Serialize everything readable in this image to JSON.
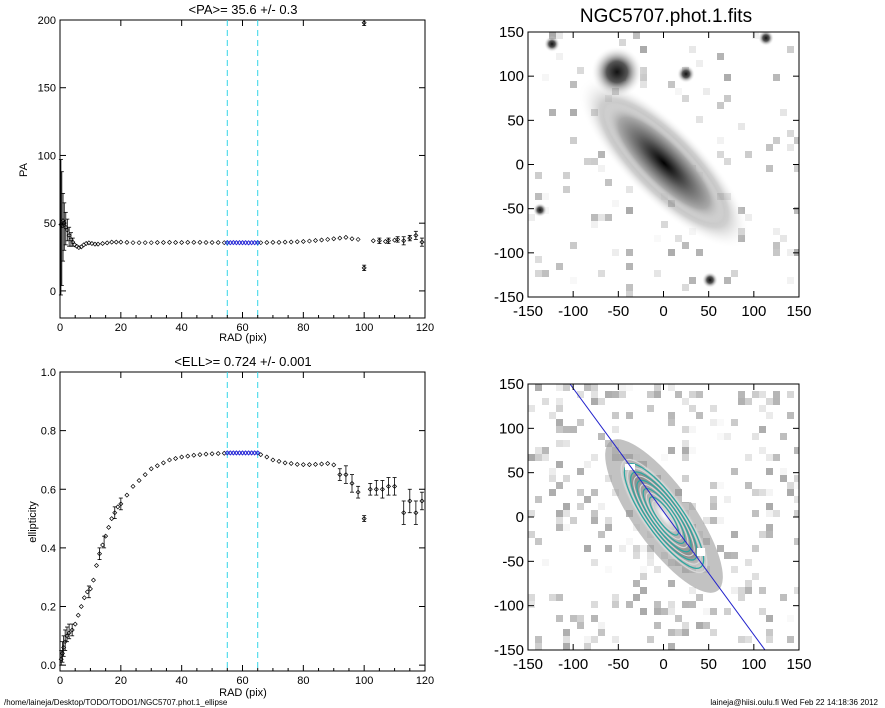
{
  "footer": {
    "path": "/home/laineja/Desktop/TODO/TODO1/NGC5707.phot.1_ellipse",
    "stamp": "laineja@hiisi.oulu.fi  Wed Feb 22 14:18:36 2012"
  },
  "colors": {
    "marker": "#000000",
    "fit_range": "#2b2bd6",
    "dashed": "#34d6e8",
    "pa_line": "#2222cc"
  },
  "chart_data": [
    {
      "type": "scatter",
      "title": "<PA>=  35.6 +/-   0.3",
      "xlabel": "RAD (pix)",
      "ylabel": "PA",
      "xlim": [
        0,
        120
      ],
      "ylim": [
        -20,
        200
      ],
      "xticks": [
        "0",
        "20",
        "40",
        "60",
        "80",
        "100",
        "120"
      ],
      "yticks": [
        "0",
        "50",
        "100",
        "150",
        "200"
      ],
      "vlines": [
        55,
        65
      ],
      "error_bars": [
        {
          "x": 0.3,
          "y": 49,
          "lo": -3,
          "hi": 97
        },
        {
          "x": 0.6,
          "y": 48,
          "lo": 4,
          "hi": 88
        },
        {
          "x": 1.0,
          "y": 52,
          "lo": 22,
          "hi": 72
        },
        {
          "x": 1.4,
          "y": 50,
          "lo": 30,
          "hi": 65
        },
        {
          "x": 1.9,
          "y": 47,
          "lo": 34,
          "hi": 58
        },
        {
          "x": 2.4,
          "y": 45,
          "lo": 37,
          "hi": 53
        },
        {
          "x": 3.0,
          "y": 41,
          "lo": 33,
          "hi": 47
        },
        {
          "x": 3.6,
          "y": 38,
          "lo": 33,
          "hi": 43
        },
        {
          "x": 4.2,
          "y": 36,
          "lo": 33,
          "hi": 39
        },
        {
          "x": 100,
          "y": 17,
          "lo": 15,
          "hi": 19
        },
        {
          "x": 100,
          "y": 198,
          "lo": 196,
          "hi": 200
        },
        {
          "x": 105,
          "y": 37,
          "lo": 35,
          "hi": 39
        },
        {
          "x": 108,
          "y": 37,
          "lo": 35,
          "hi": 39
        },
        {
          "x": 111,
          "y": 38,
          "lo": 36,
          "hi": 40
        },
        {
          "x": 113,
          "y": 37,
          "lo": 34,
          "hi": 40
        },
        {
          "x": 115,
          "y": 39,
          "lo": 37,
          "hi": 41
        },
        {
          "x": 117,
          "y": 41,
          "lo": 38,
          "hi": 44
        },
        {
          "x": 119,
          "y": 36,
          "lo": 33,
          "hi": 39
        }
      ],
      "points": [
        [
          0.3,
          49
        ],
        [
          0.6,
          48
        ],
        [
          1.0,
          52
        ],
        [
          1.4,
          50
        ],
        [
          1.9,
          47
        ],
        [
          2.4,
          45
        ],
        [
          3.0,
          41
        ],
        [
          3.6,
          38
        ],
        [
          4.2,
          36
        ],
        [
          4.8,
          34
        ],
        [
          5.5,
          33
        ],
        [
          6.2,
          32
        ],
        [
          7.0,
          32.5
        ],
        [
          7.8,
          34
        ],
        [
          8.6,
          35
        ],
        [
          9.5,
          35.5
        ],
        [
          10.5,
          35
        ],
        [
          11.5,
          34.5
        ],
        [
          12.5,
          34.5
        ],
        [
          14,
          35
        ],
        [
          15.5,
          35.5
        ],
        [
          17,
          36
        ],
        [
          18.5,
          36
        ],
        [
          20,
          36
        ],
        [
          22,
          35.8
        ],
        [
          24,
          35.6
        ],
        [
          26,
          35.6
        ],
        [
          28,
          35.6
        ],
        [
          30,
          35.6
        ],
        [
          32,
          35.7
        ],
        [
          34,
          35.7
        ],
        [
          36,
          35.8
        ],
        [
          38,
          35.7
        ],
        [
          40,
          35.7
        ],
        [
          42,
          35.8
        ],
        [
          44,
          35.8
        ],
        [
          46,
          35.8
        ],
        [
          48,
          35.7
        ],
        [
          50,
          35.7
        ],
        [
          52,
          35.7
        ],
        [
          54,
          35.6
        ],
        [
          66,
          35.6
        ],
        [
          68,
          35.7
        ],
        [
          70,
          35.8
        ],
        [
          72,
          35.8
        ],
        [
          74,
          36
        ],
        [
          76,
          36.1
        ],
        [
          78,
          36.3
        ],
        [
          80,
          36.5
        ],
        [
          82,
          36.8
        ],
        [
          84,
          37.2
        ],
        [
          86,
          37.6
        ],
        [
          88,
          38
        ],
        [
          90,
          38.5
        ],
        [
          92,
          39
        ],
        [
          94,
          39.5
        ],
        [
          96,
          38.5
        ],
        [
          98,
          38
        ],
        [
          100,
          17
        ],
        [
          100,
          198
        ],
        [
          103,
          37
        ],
        [
          105,
          37
        ],
        [
          107,
          36.5
        ],
        [
          108,
          37
        ],
        [
          110,
          37.5
        ],
        [
          111,
          38
        ],
        [
          113,
          37
        ],
        [
          115,
          39
        ],
        [
          117,
          41
        ],
        [
          119,
          36
        ]
      ],
      "fit_points": [
        [
          55,
          35.6
        ],
        [
          56,
          35.6
        ],
        [
          57,
          35.7
        ],
        [
          58,
          35.6
        ],
        [
          59,
          35.6
        ],
        [
          60,
          35.6
        ],
        [
          61,
          35.6
        ],
        [
          62,
          35.5
        ],
        [
          63,
          35.6
        ],
        [
          64,
          35.6
        ],
        [
          65,
          35.6
        ]
      ]
    },
    {
      "type": "image",
      "title": "NGC5707.phot.1.fits",
      "xlim": [
        -150,
        150
      ],
      "ylim": [
        -150,
        150
      ],
      "xticks": [
        "-150",
        "-100",
        "-50",
        "0",
        "50",
        "100",
        "150"
      ],
      "yticks": [
        "-150",
        "-100",
        "-50",
        "0",
        "50",
        "100",
        "150"
      ]
    },
    {
      "type": "scatter",
      "title": "<ELL>= 0.724 +/-  0.001",
      "xlabel": "RAD (pix)",
      "ylabel": "ellipticity",
      "xlim": [
        0,
        120
      ],
      "ylim": [
        -0.02,
        1.0
      ],
      "xticks": [
        "0",
        "20",
        "40",
        "60",
        "80",
        "100",
        "120"
      ],
      "yticks": [
        "0.0",
        "0.2",
        "0.4",
        "0.6",
        "0.8",
        "1.0"
      ],
      "vlines": [
        55,
        65
      ],
      "error_bars": [
        {
          "x": 0.4,
          "y": 0.02,
          "lo": 0.0,
          "hi": 0.05
        },
        {
          "x": 0.8,
          "y": 0.04,
          "lo": 0.01,
          "hi": 0.08
        },
        {
          "x": 1.2,
          "y": 0.06,
          "lo": 0.03,
          "hi": 0.1
        },
        {
          "x": 1.7,
          "y": 0.08,
          "lo": 0.05,
          "hi": 0.12
        },
        {
          "x": 2.3,
          "y": 0.1,
          "lo": 0.08,
          "hi": 0.13
        },
        {
          "x": 3.0,
          "y": 0.11,
          "lo": 0.09,
          "hi": 0.14
        },
        {
          "x": 4.0,
          "y": 0.12,
          "lo": 0.1,
          "hi": 0.14
        },
        {
          "x": 9.5,
          "y": 0.25,
          "lo": 0.23,
          "hi": 0.27
        },
        {
          "x": 13,
          "y": 0.38,
          "lo": 0.36,
          "hi": 0.4
        },
        {
          "x": 14.5,
          "y": 0.42,
          "lo": 0.4,
          "hi": 0.44
        },
        {
          "x": 18,
          "y": 0.52,
          "lo": 0.5,
          "hi": 0.54
        },
        {
          "x": 20,
          "y": 0.55,
          "lo": 0.53,
          "hi": 0.57
        },
        {
          "x": 92,
          "y": 0.65,
          "lo": 0.63,
          "hi": 0.67
        },
        {
          "x": 94,
          "y": 0.65,
          "lo": 0.62,
          "hi": 0.68
        },
        {
          "x": 96,
          "y": 0.62,
          "lo": 0.59,
          "hi": 0.65
        },
        {
          "x": 98,
          "y": 0.59,
          "lo": 0.57,
          "hi": 0.61
        },
        {
          "x": 100,
          "y": 0.5,
          "lo": 0.49,
          "hi": 0.51
        },
        {
          "x": 102,
          "y": 0.6,
          "lo": 0.58,
          "hi": 0.62
        },
        {
          "x": 104,
          "y": 0.6,
          "lo": 0.58,
          "hi": 0.63
        },
        {
          "x": 106,
          "y": 0.6,
          "lo": 0.57,
          "hi": 0.63
        },
        {
          "x": 108,
          "y": 0.61,
          "lo": 0.58,
          "hi": 0.64
        },
        {
          "x": 110,
          "y": 0.61,
          "lo": 0.58,
          "hi": 0.64
        },
        {
          "x": 113,
          "y": 0.52,
          "lo": 0.48,
          "hi": 0.56
        },
        {
          "x": 115,
          "y": 0.56,
          "lo": 0.52,
          "hi": 0.6
        },
        {
          "x": 117,
          "y": 0.52,
          "lo": 0.48,
          "hi": 0.56
        },
        {
          "x": 119,
          "y": 0.56,
          "lo": 0.53,
          "hi": 0.59
        }
      ],
      "points": [
        [
          0.4,
          0.02
        ],
        [
          0.8,
          0.04
        ],
        [
          1.2,
          0.06
        ],
        [
          1.7,
          0.08
        ],
        [
          2.3,
          0.1
        ],
        [
          3.0,
          0.11
        ],
        [
          4.0,
          0.12
        ],
        [
          5.0,
          0.14
        ],
        [
          6.0,
          0.17
        ],
        [
          7.0,
          0.2
        ],
        [
          8.0,
          0.23
        ],
        [
          9.0,
          0.25
        ],
        [
          10,
          0.26
        ],
        [
          11,
          0.29
        ],
        [
          12,
          0.34
        ],
        [
          13,
          0.38
        ],
        [
          14,
          0.41
        ],
        [
          15,
          0.44
        ],
        [
          16,
          0.47
        ],
        [
          17,
          0.5
        ],
        [
          18,
          0.52
        ],
        [
          19,
          0.54
        ],
        [
          20,
          0.55
        ],
        [
          22,
          0.58
        ],
        [
          24,
          0.61
        ],
        [
          26,
          0.63
        ],
        [
          28,
          0.65
        ],
        [
          30,
          0.67
        ],
        [
          32,
          0.68
        ],
        [
          34,
          0.69
        ],
        [
          36,
          0.7
        ],
        [
          38,
          0.705
        ],
        [
          40,
          0.71
        ],
        [
          42,
          0.713
        ],
        [
          44,
          0.716
        ],
        [
          46,
          0.718
        ],
        [
          48,
          0.72
        ],
        [
          50,
          0.721
        ],
        [
          52,
          0.722
        ],
        [
          54,
          0.723
        ],
        [
          66,
          0.718
        ],
        [
          68,
          0.71
        ],
        [
          70,
          0.7
        ],
        [
          72,
          0.695
        ],
        [
          74,
          0.69
        ],
        [
          76,
          0.688
        ],
        [
          78,
          0.685
        ],
        [
          80,
          0.684
        ],
        [
          82,
          0.684
        ],
        [
          84,
          0.685
        ],
        [
          86,
          0.686
        ],
        [
          88,
          0.688
        ],
        [
          90,
          0.683
        ],
        [
          92,
          0.65
        ],
        [
          94,
          0.65
        ],
        [
          96,
          0.62
        ],
        [
          98,
          0.59
        ],
        [
          100,
          0.5
        ],
        [
          102,
          0.6
        ],
        [
          104,
          0.6
        ],
        [
          106,
          0.6
        ],
        [
          108,
          0.61
        ],
        [
          110,
          0.61
        ],
        [
          113,
          0.52
        ],
        [
          115,
          0.56
        ],
        [
          117,
          0.52
        ],
        [
          119,
          0.56
        ]
      ],
      "fit_points": [
        [
          55,
          0.724
        ],
        [
          56,
          0.724
        ],
        [
          57,
          0.724
        ],
        [
          58,
          0.724
        ],
        [
          59,
          0.724
        ],
        [
          60,
          0.724
        ],
        [
          61,
          0.724
        ],
        [
          62,
          0.724
        ],
        [
          63,
          0.724
        ],
        [
          64,
          0.724
        ],
        [
          65,
          0.724
        ]
      ]
    },
    {
      "type": "image",
      "title": "",
      "xlim": [
        -150,
        150
      ],
      "ylim": [
        -150,
        150
      ],
      "xticks": [
        "-150",
        "-100",
        "-50",
        "0",
        "50",
        "100",
        "150"
      ],
      "yticks": [
        "-150",
        "-100",
        "-50",
        "0",
        "50",
        "100",
        "150"
      ],
      "pa_deg": 35.6,
      "ellipticity": 0.724
    }
  ]
}
